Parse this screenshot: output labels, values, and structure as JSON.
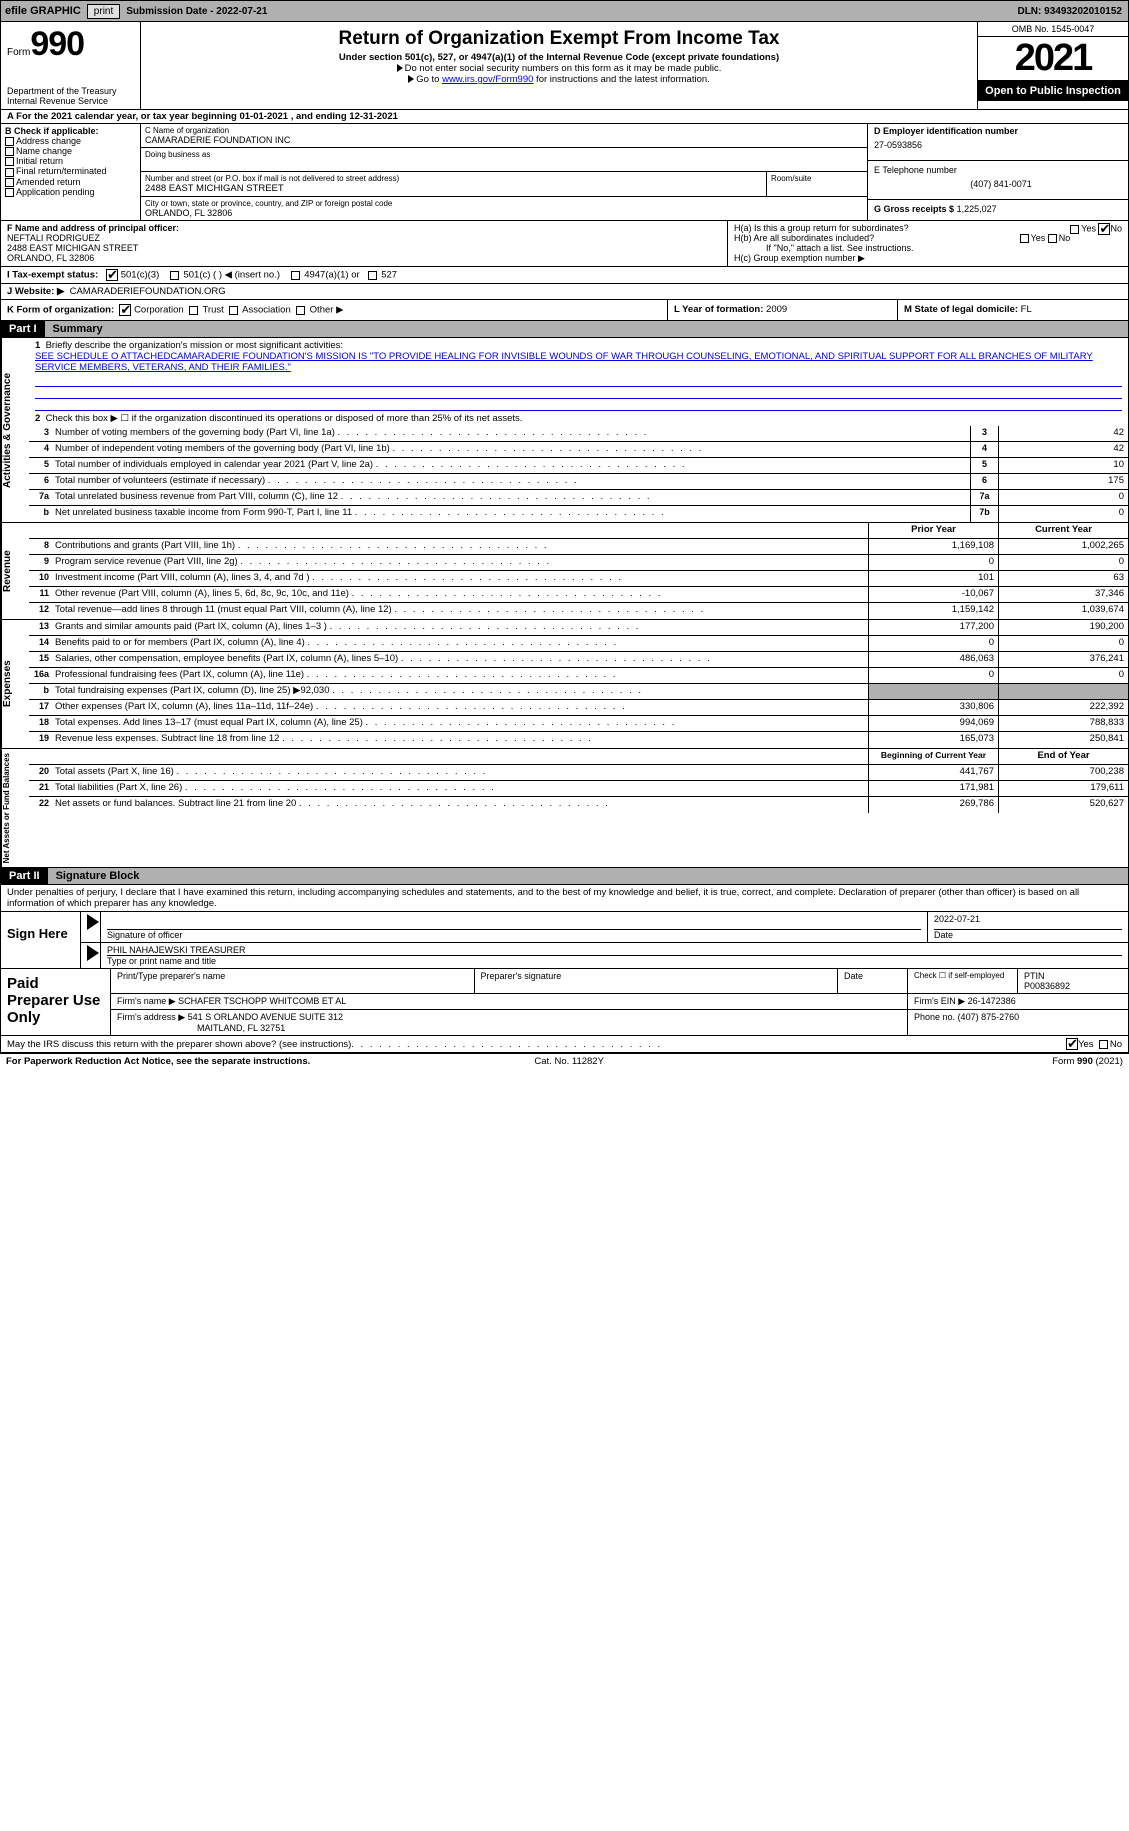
{
  "topbar": {
    "efile": "efile GRAPHIC",
    "print": "print",
    "submission": "Submission Date - 2022-07-21",
    "dln": "DLN: 93493202010152"
  },
  "header": {
    "form_label": "Form",
    "form_no": "990",
    "title": "Return of Organization Exempt From Income Tax",
    "sub1": "Under section 501(c), 527, or 4947(a)(1) of the Internal Revenue Code (except private foundations)",
    "sub2": "Do not enter social security numbers on this form as it may be made public.",
    "sub3_pre": "Go to ",
    "sub3_link": "www.irs.gov/Form990",
    "sub3_post": " for instructions and the latest information.",
    "dept": "Department of the Treasury\nInternal Revenue Service",
    "omb": "OMB No. 1545-0047",
    "year": "2021",
    "open": "Open to Public Inspection"
  },
  "period": "A  For the 2021 calendar year, or tax year beginning 01-01-2021     , and ending 12-31-2021",
  "B": {
    "label": "B Check if applicable:",
    "items": [
      "Address change",
      "Name change",
      "Initial return",
      "Final return/terminated",
      "Amended return",
      "Application pending"
    ]
  },
  "C": {
    "name_label": "C Name of organization",
    "name": "CAMARADERIE FOUNDATION INC",
    "dba_label": "Doing business as",
    "addr_label": "Number and street (or P.O. box if mail is not delivered to street address)",
    "addr": "2488 EAST MICHIGAN STREET",
    "room_label": "Room/suite",
    "city_label": "City or town, state or province, country, and ZIP or foreign postal code",
    "city": "ORLANDO, FL  32806"
  },
  "D": {
    "ein_label": "D Employer identification number",
    "ein": "27-0593856",
    "tel_label": "E Telephone number",
    "tel": "(407) 841-0071",
    "gross_label": "G Gross receipts $",
    "gross": "1,225,027"
  },
  "F": {
    "label": "F Name and address of principal officer:",
    "name": "NEFTALI RODRIGUEZ",
    "addr": "2488 EAST MICHIGAN STREET",
    "city": "ORLANDO, FL  32806"
  },
  "H": {
    "a": "H(a)  Is this a group return for subordinates?",
    "b": "H(b)  Are all subordinates included?",
    "bnote": "If \"No,\" attach a list. See instructions.",
    "c": "H(c)  Group exemption number ▶"
  },
  "I": {
    "label": "I    Tax-exempt status:",
    "opts": [
      "501(c)(3)",
      "501(c) (   ) ◀ (insert no.)",
      "4947(a)(1) or",
      "527"
    ]
  },
  "J": {
    "label": "J   Website: ▶",
    "val": "CAMARADERIEFOUNDATION.ORG"
  },
  "K": {
    "label": "K Form of organization:",
    "opts": [
      "Corporation",
      "Trust",
      "Association",
      "Other ▶"
    ]
  },
  "L": {
    "label": "L Year of formation:",
    "val": "2009"
  },
  "M": {
    "label": "M State of legal domicile:",
    "val": "FL"
  },
  "part1": {
    "label": "Part I",
    "title": "Summary"
  },
  "mission": {
    "num": "1",
    "label": "Briefly describe the organization's mission or most significant activities:",
    "text": "SEE SCHEDULE O ATTACHEDCAMARADERIE FOUNDATION'S MISSION IS \"TO PROVIDE HEALING FOR INVISIBLE WOUNDS OF WAR THROUGH COUNSELING, EMOTIONAL, AND SPIRITUAL SUPPORT FOR ALL BRANCHES OF MILITARY SERVICE MEMBERS, VETERANS, AND THEIR FAMILIES.\""
  },
  "line2": "Check this box ▶ ☐  if the organization discontinued its operations or disposed of more than 25% of its net assets.",
  "govlines": [
    {
      "n": "3",
      "t": "Number of voting members of the governing body (Part VI, line 1a)",
      "b": "3",
      "v": "42"
    },
    {
      "n": "4",
      "t": "Number of independent voting members of the governing body (Part VI, line 1b)",
      "b": "4",
      "v": "42"
    },
    {
      "n": "5",
      "t": "Total number of individuals employed in calendar year 2021 (Part V, line 2a)",
      "b": "5",
      "v": "10"
    },
    {
      "n": "6",
      "t": "Total number of volunteers (estimate if necessary)",
      "b": "6",
      "v": "175"
    },
    {
      "n": "7a",
      "t": "Total unrelated business revenue from Part VIII, column (C), line 12",
      "b": "7a",
      "v": "0"
    },
    {
      "n": "b",
      "t": "Net unrelated business taxable income from Form 990-T, Part I, line 11",
      "b": "7b",
      "v": "0"
    }
  ],
  "revhdr": {
    "prior": "Prior Year",
    "curr": "Current Year"
  },
  "revlines": [
    {
      "n": "8",
      "t": "Contributions and grants (Part VIII, line 1h)",
      "p": "1,169,108",
      "c": "1,002,265"
    },
    {
      "n": "9",
      "t": "Program service revenue (Part VIII, line 2g)",
      "p": "0",
      "c": "0"
    },
    {
      "n": "10",
      "t": "Investment income (Part VIII, column (A), lines 3, 4, and 7d )",
      "p": "101",
      "c": "63"
    },
    {
      "n": "11",
      "t": "Other revenue (Part VIII, column (A), lines 5, 6d, 8c, 9c, 10c, and 11e)",
      "p": "-10,067",
      "c": "37,346"
    },
    {
      "n": "12",
      "t": "Total revenue—add lines 8 through 11 (must equal Part VIII, column (A), line 12)",
      "p": "1,159,142",
      "c": "1,039,674"
    }
  ],
  "explines": [
    {
      "n": "13",
      "t": "Grants and similar amounts paid (Part IX, column (A), lines 1–3 )",
      "p": "177,200",
      "c": "190,200"
    },
    {
      "n": "14",
      "t": "Benefits paid to or for members (Part IX, column (A), line 4)",
      "p": "0",
      "c": "0"
    },
    {
      "n": "15",
      "t": "Salaries, other compensation, employee benefits (Part IX, column (A), lines 5–10)",
      "p": "486,063",
      "c": "376,241"
    },
    {
      "n": "16a",
      "t": "Professional fundraising fees (Part IX, column (A), line 11e)",
      "p": "0",
      "c": "0"
    },
    {
      "n": "b",
      "t": "Total fundraising expenses (Part IX, column (D), line 25) ▶92,030",
      "p": "",
      "c": "",
      "gray": true
    },
    {
      "n": "17",
      "t": "Other expenses (Part IX, column (A), lines 11a–11d, 11f–24e)",
      "p": "330,806",
      "c": "222,392"
    },
    {
      "n": "18",
      "t": "Total expenses. Add lines 13–17 (must equal Part IX, column (A), line 25)",
      "p": "994,069",
      "c": "788,833"
    },
    {
      "n": "19",
      "t": "Revenue less expenses. Subtract line 18 from line 12",
      "p": "165,073",
      "c": "250,841"
    }
  ],
  "nethdr": {
    "prior": "Beginning of Current Year",
    "curr": "End of Year"
  },
  "netlines": [
    {
      "n": "20",
      "t": "Total assets (Part X, line 16)",
      "p": "441,767",
      "c": "700,238"
    },
    {
      "n": "21",
      "t": "Total liabilities (Part X, line 26)",
      "p": "171,981",
      "c": "179,611"
    },
    {
      "n": "22",
      "t": "Net assets or fund balances. Subtract line 21 from line 20",
      "p": "269,786",
      "c": "520,627"
    }
  ],
  "vtabs": {
    "gov": "Activities & Governance",
    "rev": "Revenue",
    "exp": "Expenses",
    "net": "Net Assets or Fund Balances"
  },
  "part2": {
    "label": "Part II",
    "title": "Signature Block"
  },
  "sigdecl": "Under penalties of perjury, I declare that I have examined this return, including accompanying schedules and statements, and to the best of my knowledge and belief, it is true, correct, and complete. Declaration of preparer (other than officer) is based on all information of which preparer has any knowledge.",
  "sign": {
    "here": "Sign Here",
    "sig_label": "Signature of officer",
    "date": "2022-07-21",
    "date_label": "Date",
    "name": "PHIL NAHAJEWSKI  TREASURER",
    "name_label": "Type or print name and title"
  },
  "paid": {
    "label": "Paid Preparer Use Only",
    "h1": "Print/Type preparer's name",
    "h2": "Preparer's signature",
    "h3": "Date",
    "h4_pre": "Check ☐ if self-employed",
    "h5": "PTIN",
    "ptin": "P00836892",
    "firm_label": "Firm's name     ▶",
    "firm": "SCHAFER TSCHOPP WHITCOMB ET AL",
    "ein_label": "Firm's EIN ▶",
    "ein": "26-1472386",
    "addr_label": "Firm's address ▶",
    "addr": "541 S ORLANDO AVENUE SUITE 312",
    "city": "MAITLAND, FL  32751",
    "phone_label": "Phone no.",
    "phone": "(407) 875-2760"
  },
  "discuss": "May the IRS discuss this return with the preparer shown above? (see instructions)",
  "footer": {
    "left": "For Paperwork Reduction Act Notice, see the separate instructions.",
    "mid": "Cat. No. 11282Y",
    "right": "Form 990 (2021)"
  }
}
